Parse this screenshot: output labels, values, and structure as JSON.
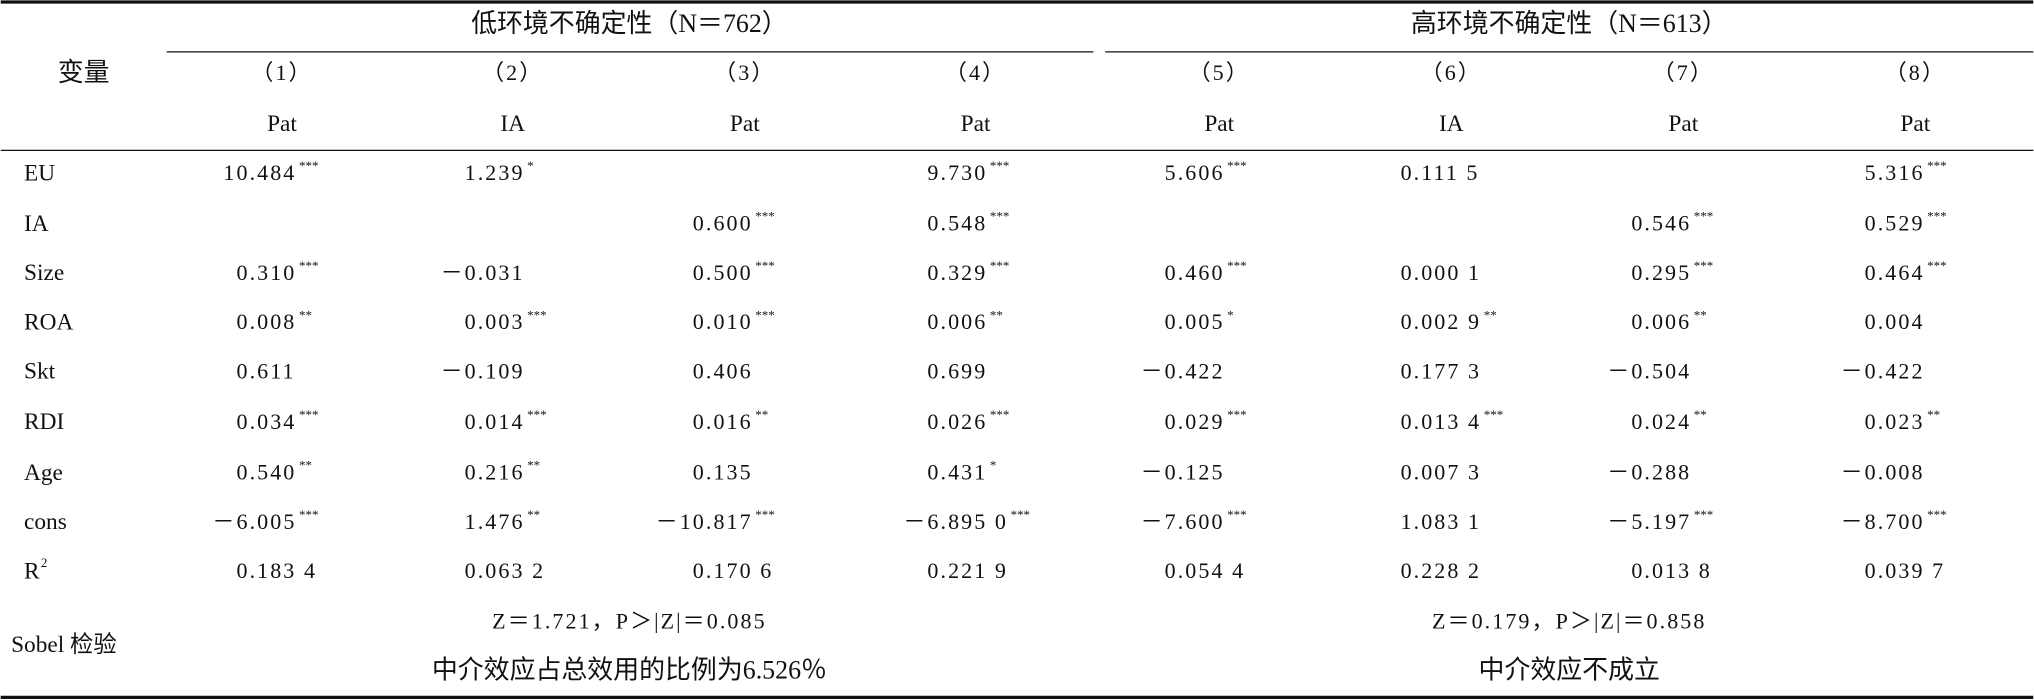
{
  "table": {
    "header": {
      "var_label": "变量",
      "groups": [
        "低环境不确定性（N＝762）",
        "高环境不确定性（N＝613）"
      ],
      "columns": [
        {
          "number": "（1）",
          "dv": "Pat"
        },
        {
          "number": "（2）",
          "dv": "IA"
        },
        {
          "number": "（3）",
          "dv": "Pat"
        },
        {
          "number": "（4）",
          "dv": "Pat"
        },
        {
          "number": "（5）",
          "dv": "Pat"
        },
        {
          "number": "（6）",
          "dv": "IA"
        },
        {
          "number": "（7）",
          "dv": "Pat"
        },
        {
          "number": "（8）",
          "dv": "Pat"
        }
      ]
    },
    "rows": [
      {
        "label": {
          "text": "EU"
        },
        "cells": [
          {
            "v": "10.484",
            "sig": "***"
          },
          {
            "v": "1.239",
            "sig": "*"
          },
          null,
          {
            "v": "9.730",
            "sig": "***"
          },
          {
            "v": "5.606",
            "sig": "***"
          },
          {
            "v": "0.111 5"
          },
          null,
          {
            "v": "5.316",
            "sig": "***"
          }
        ]
      },
      {
        "label": {
          "text": "IA"
        },
        "cells": [
          null,
          null,
          {
            "v": "0.600",
            "sig": "***"
          },
          {
            "v": "0.548",
            "sig": "***"
          },
          null,
          null,
          {
            "v": "0.546",
            "sig": "***"
          },
          {
            "v": "0.529",
            "sig": "***"
          }
        ]
      },
      {
        "label": {
          "text": "Size"
        },
        "cells": [
          {
            "v": "0.310",
            "sig": "***"
          },
          {
            "v": "－0.031"
          },
          {
            "v": "0.500",
            "sig": "***"
          },
          {
            "v": "0.329",
            "sig": "***"
          },
          {
            "v": "0.460",
            "sig": "***"
          },
          {
            "v": "0.000 1"
          },
          {
            "v": "0.295",
            "sig": "***"
          },
          {
            "v": "0.464",
            "sig": "***"
          }
        ]
      },
      {
        "label": {
          "text": "ROA"
        },
        "cells": [
          {
            "v": "0.008",
            "sig": "**"
          },
          {
            "v": "0.003",
            "sig": "***"
          },
          {
            "v": "0.010",
            "sig": "***"
          },
          {
            "v": "0.006",
            "sig": "**"
          },
          {
            "v": "0.005",
            "sig": "*"
          },
          {
            "v": "0.002 9",
            "sig": "**"
          },
          {
            "v": "0.006",
            "sig": "**"
          },
          {
            "v": "0.004"
          }
        ]
      },
      {
        "label": {
          "text": "Skt"
        },
        "cells": [
          {
            "v": "0.611"
          },
          {
            "v": "－0.109"
          },
          {
            "v": "0.406"
          },
          {
            "v": "0.699"
          },
          {
            "v": "－0.422"
          },
          {
            "v": "0.177 3"
          },
          {
            "v": "－0.504"
          },
          {
            "v": "－0.422"
          }
        ]
      },
      {
        "label": {
          "text": "RDI"
        },
        "cells": [
          {
            "v": "0.034",
            "sig": "***"
          },
          {
            "v": "0.014",
            "sig": "***"
          },
          {
            "v": "0.016",
            "sig": "**"
          },
          {
            "v": "0.026",
            "sig": "***"
          },
          {
            "v": "0.029",
            "sig": "***"
          },
          {
            "v": "0.013 4",
            "sig": "***"
          },
          {
            "v": "0.024",
            "sig": "**"
          },
          {
            "v": "0.023",
            "sig": "**"
          }
        ]
      },
      {
        "label": {
          "text": "Age"
        },
        "cells": [
          {
            "v": "0.540",
            "sig": "**"
          },
          {
            "v": "0.216",
            "sig": "**"
          },
          {
            "v": "0.135"
          },
          {
            "v": "0.431",
            "sig": "*"
          },
          {
            "v": "－0.125"
          },
          {
            "v": "0.007 3"
          },
          {
            "v": "－0.288"
          },
          {
            "v": "－0.008"
          }
        ]
      },
      {
        "label": {
          "text": "cons"
        },
        "cells": [
          {
            "v": "－6.005",
            "sig": "***"
          },
          {
            "v": "1.476",
            "sig": "**"
          },
          {
            "v": "－10.817",
            "sig": "***"
          },
          {
            "v": "－6.895 0",
            "sig": "***"
          },
          {
            "v": "－7.600",
            "sig": "***"
          },
          {
            "v": "1.083 1"
          },
          {
            "v": "－5.197",
            "sig": "***"
          },
          {
            "v": "－8.700",
            "sig": "***"
          }
        ]
      },
      {
        "label": {
          "text": "R",
          "sup": "2"
        },
        "cells": [
          {
            "v": "0.183 4"
          },
          {
            "v": "0.063 2"
          },
          {
            "v": "0.170 6"
          },
          {
            "v": "0.221 9"
          },
          {
            "v": "0.054 4"
          },
          {
            "v": "0.228 2"
          },
          {
            "v": "0.013 8"
          },
          {
            "v": "0.039 7"
          }
        ]
      }
    ],
    "sobel": {
      "label": "Sobel 检验",
      "groups": [
        {
          "test": "Z＝1.721，P＞|Z|＝0.085",
          "conclusion": "中介效应占总效用的比例为6.526％"
        },
        {
          "test": "Z＝0.179，P＞|Z|＝0.858",
          "conclusion": "中介效应不成立"
        }
      ]
    }
  }
}
